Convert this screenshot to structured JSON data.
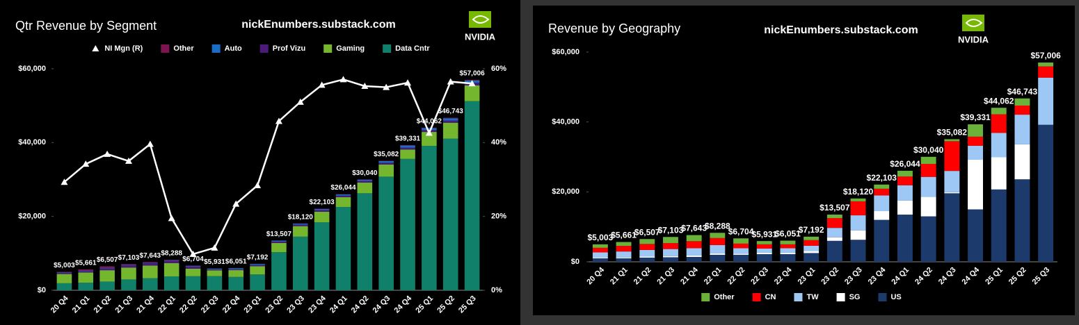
{
  "chart_data": [
    {
      "type": "bar",
      "title": "Qtr Revenue by Segment",
      "watermark": "nickEnumbers.substack.com",
      "logo_text": "NVIDIA",
      "categories": [
        "20 Q4",
        "21 Q1",
        "21 Q2",
        "21 Q3",
        "21 Q4",
        "22 Q1",
        "22 Q2",
        "22 Q3",
        "22 Q4",
        "23 Q1",
        "23 Q2",
        "23 Q3",
        "23 Q4",
        "24 Q1",
        "24 Q2",
        "24 Q3",
        "24 Q4",
        "25 Q1",
        "25 Q2",
        "25 Q3"
      ],
      "series": [
        {
          "name": "Data Cntr",
          "color": "#11806a",
          "values": [
            1903,
            2048,
            2366,
            2936,
            3263,
            3750,
            3806,
            3833,
            3616,
            4284,
            10323,
            14514,
            18404,
            22563,
            26272,
            30771,
            35580,
            39112,
            41096,
            51215
          ]
        },
        {
          "name": "Gaming",
          "color": "#74b62e",
          "values": [
            2495,
            2760,
            3061,
            3221,
            3420,
            3620,
            2042,
            1574,
            1831,
            2240,
            2486,
            2856,
            2865,
            2647,
            2880,
            3279,
            2544,
            3763,
            4287,
            4265
          ]
        },
        {
          "name": "Prof Vizu",
          "color": "#4b1a7a",
          "values": [
            307,
            372,
            519,
            577,
            643,
            622,
            496,
            200,
            226,
            295,
            379,
            416,
            463,
            427,
            454,
            486,
            511,
            509,
            601,
            760
          ]
        },
        {
          "name": "Auto",
          "color": "#1a6cc4",
          "values": [
            145,
            154,
            152,
            135,
            125,
            138,
            220,
            251,
            294,
            296,
            253,
            261,
            281,
            329,
            346,
            449,
            570,
            567,
            586,
            592
          ]
        },
        {
          "name": "Other",
          "color": "#7b1450",
          "values": [
            153,
            327,
            409,
            234,
            192,
            158,
            140,
            73,
            84,
            77,
            66,
            73,
            90,
            78,
            88,
            97,
            126,
            111,
            173,
            174
          ]
        },
        {
          "name": "NI Mgn (R)",
          "color": "#ffffff",
          "type": "line",
          "axis": "y2",
          "values": [
            29.3,
            34.2,
            36.9,
            35.0,
            39.6,
            19.5,
            9.8,
            11.5,
            23.4,
            28.4,
            45.8,
            51.0,
            55.6,
            57.1,
            55.3,
            55.0,
            56.2,
            42.6,
            56.5,
            56.0
          ]
        }
      ],
      "totals": {
        "values": [
          5003,
          5661,
          6507,
          7103,
          7643,
          8288,
          6704,
          5931,
          6051,
          7192,
          13507,
          18120,
          22103,
          26044,
          30040,
          35082,
          39331,
          44062,
          46743,
          57006
        ],
        "value_labels": [
          "$5,003",
          "$5,661",
          "$6,507",
          "$7,103",
          "$7,643",
          "$8,288",
          "$6,704",
          "$5,931",
          "$6,051",
          "$7,192",
          "$13,507",
          "$18,120",
          "$22,103",
          "$26,044",
          "$30,040",
          "$35,082",
          "$39,331",
          "$44,062",
          "$46,743",
          "$57,006"
        ]
      },
      "ylim": [
        0,
        60000
      ],
      "yticks": [
        {
          "value": 0,
          "label": "$0"
        },
        {
          "value": 20000,
          "label": "$20,000"
        },
        {
          "value": 40000,
          "label": "$40,000"
        },
        {
          "value": 60000,
          "label": "$60,000"
        }
      ],
      "y2lim": [
        0,
        60
      ],
      "y2ticks": [
        {
          "value": 0,
          "label": "0%"
        },
        {
          "value": 20,
          "label": "20%"
        },
        {
          "value": 40,
          "label": "40%"
        },
        {
          "value": 60,
          "label": "60%"
        }
      ],
      "grid": false,
      "legend": "top"
    },
    {
      "type": "bar",
      "title": "Revenue by Geography",
      "watermark": "nickEnumbers.substack.com",
      "logo_text": "NVIDIA",
      "categories": [
        "20 Q4",
        "21 Q1",
        "21 Q2",
        "21 Q3",
        "21 Q4",
        "22 Q1",
        "22 Q2",
        "22 Q3",
        "22 Q4",
        "23 Q1",
        "23 Q2",
        "23 Q3",
        "23 Q4",
        "24 Q1",
        "24 Q2",
        "24 Q3",
        "24 Q4",
        "25 Q1",
        "25 Q2",
        "25 Q3"
      ],
      "series": [
        {
          "name": "US",
          "color": "#1c3a6b",
          "values": [
            1000,
            1000,
            1200,
            1300,
            1400,
            2000,
            2000,
            2200,
            2200,
            2500,
            6000,
            6300,
            12000,
            13500,
            13000,
            19600,
            15000,
            20700,
            23600,
            39200
          ]
        },
        {
          "name": "SG",
          "color": "#ffffff",
          "values": [
            200,
            250,
            300,
            350,
            400,
            400,
            300,
            400,
            400,
            600,
            1000,
            2700,
            2500,
            4000,
            5600,
            300,
            14200,
            9200,
            10000,
            0
          ]
        },
        {
          "name": "TW",
          "color": "#9dc8f5",
          "values": [
            1500,
            1700,
            1900,
            2000,
            2100,
            2400,
            1600,
            1200,
            1300,
            1500,
            2700,
            4300,
            4500,
            4400,
            5700,
            6100,
            4000,
            7000,
            8500,
            13500
          ]
        },
        {
          "name": "CN",
          "color": "#ff0000",
          "values": [
            1300,
            1600,
            1700,
            1700,
            2000,
            2000,
            1300,
            1200,
            1100,
            1600,
            2800,
            4000,
            1900,
            2500,
            3700,
            8500,
            2600,
            5300,
            2600,
            3200
          ]
        },
        {
          "name": "Other",
          "color": "#6ab23a",
          "values": [
            1003,
            1111,
            1407,
            1753,
            1743,
            1488,
            1504,
            931,
            1051,
            992,
            1007,
            820,
            1203,
            1644,
            2040,
            582,
            3531,
            1862,
            2043,
            1106
          ]
        }
      ],
      "totals": {
        "values": [
          5003,
          5661,
          6507,
          7103,
          7643,
          8288,
          6704,
          5931,
          6051,
          7192,
          13507,
          18120,
          22103,
          26044,
          30040,
          35082,
          39331,
          44062,
          46743,
          57006
        ],
        "value_labels": [
          "$5,003",
          "$5,661",
          "$6,507",
          "$7,103",
          "$7,643",
          "$8,288",
          "$6,704",
          "$5,931",
          "$6,051",
          "$7,192",
          "$13,507",
          "$18,120",
          "$22,103",
          "$26,044",
          "$30,040",
          "$35,082",
          "$39,331",
          "$44,062",
          "$46,743",
          "$57,006"
        ]
      },
      "ylim": [
        0,
        60000
      ],
      "yticks": [
        {
          "value": 0,
          "label": "$0"
        },
        {
          "value": 20000,
          "label": "$20,000"
        },
        {
          "value": 40000,
          "label": "$40,000"
        },
        {
          "value": 60000,
          "label": "$60,000"
        }
      ],
      "grid": false,
      "legend": "bottom"
    }
  ]
}
